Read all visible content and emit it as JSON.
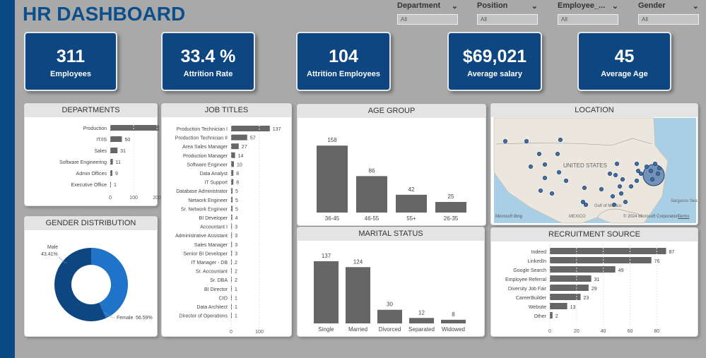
{
  "header": {
    "title": "HR DASHBOARD"
  },
  "filters": [
    {
      "label": "Department",
      "value": "All"
    },
    {
      "label": "Position",
      "value": "All"
    },
    {
      "label": "Employee_...",
      "value": "All"
    },
    {
      "label": "Gender",
      "value": "All"
    }
  ],
  "kpis": [
    {
      "value": "311",
      "label": "Employees"
    },
    {
      "value": "33.4 %",
      "label": "Attrition Rate"
    },
    {
      "value": "104",
      "label": "Attrition Employees"
    },
    {
      "value": "$69,021",
      "label": "Average salary"
    },
    {
      "value": "45",
      "label": "Average Age"
    }
  ],
  "cards": {
    "departments": "DEPARTMENTS",
    "job_titles": "JOB TITLES",
    "age_group": "AGE GROUP",
    "location": "LOCATION",
    "gender": "GENDER DISTRIBUTION",
    "marital": "MARITAL STATUS",
    "recruitment": "RECRUITMENT SOURCE"
  },
  "map": {
    "labels": {
      "us": "UNITED STATES",
      "mexico": "MEXICO",
      "gulf": "Gulf of Mexico",
      "sargasso": "Sargasso Sea"
    },
    "attribution": "© 2024 Microsoft Corporation",
    "terms": "Terms",
    "brand": "Microsoft Bing"
  },
  "colors": {
    "bar": "#666666",
    "kpi": "#0d4680",
    "donut_dark": "#0d4680",
    "donut_light": "#1f73c8"
  },
  "chart_data": [
    {
      "id": "departments",
      "type": "bar",
      "orientation": "horizontal",
      "categories": [
        "Production",
        "IT/IS",
        "Sales",
        "Software Engineering",
        "Admin Offices",
        "Executive Office"
      ],
      "values": [
        209,
        50,
        31,
        11,
        9,
        1
      ],
      "x_ticks": [
        "0",
        "100",
        "200"
      ],
      "xlim": [
        0,
        215
      ]
    },
    {
      "id": "job_titles",
      "type": "bar",
      "orientation": "horizontal",
      "categories": [
        "Production Technician I",
        "Production Technician II",
        "Area Sales Manager",
        "Production Manager",
        "Software Engineer",
        "Data Analyst",
        "IT Support",
        "Database Administrator",
        "Network Engineer",
        "Sr. Network Engineer",
        "BI Developer",
        "Accountant I",
        "Administrative Assistant",
        "Sales Manager",
        "Senior BI Developer",
        "IT Manager - DB",
        "Sr. Accountant",
        "Sr. DBA",
        "BI Director",
        "CIO",
        "Data Architect",
        "Director of Operations"
      ],
      "values": [
        137,
        57,
        27,
        14,
        10,
        8,
        8,
        5,
        5,
        5,
        4,
        3,
        3,
        3,
        3,
        2,
        2,
        2,
        1,
        1,
        1,
        1
      ],
      "x_ticks": [
        "0",
        "100"
      ],
      "xlim": [
        0,
        140
      ]
    },
    {
      "id": "age_group",
      "type": "bar",
      "categories": [
        "36-45",
        "46-55",
        "55+",
        "26-35"
      ],
      "values": [
        158,
        86,
        42,
        25
      ],
      "ylim": [
        0,
        160
      ]
    },
    {
      "id": "gender",
      "type": "pie",
      "donut": true,
      "slices": [
        {
          "label": "Male",
          "value": 43.41,
          "pct_label": "43.41%",
          "color": "#1f73c8"
        },
        {
          "label": "Female",
          "value": 56.59,
          "pct_label": "56.59%",
          "color": "#0d4680"
        }
      ]
    },
    {
      "id": "marital",
      "type": "bar",
      "categories": [
        "Single",
        "Married",
        "Divorced",
        "Separated",
        "Widowed"
      ],
      "values": [
        137,
        124,
        30,
        12,
        8
      ],
      "ylim": [
        0,
        140
      ]
    },
    {
      "id": "recruitment",
      "type": "bar",
      "orientation": "horizontal",
      "categories": [
        "Indeed",
        "LinkedIn",
        "Google Search",
        "Employee Referral",
        "Diversity Job Fair",
        "CareerBuilder",
        "Website",
        "Other"
      ],
      "values": [
        87,
        76,
        49,
        31,
        29,
        23,
        13,
        2
      ],
      "x_ticks": [
        "0",
        "20",
        "40",
        "60",
        "80"
      ],
      "xlim": [
        0,
        92
      ]
    }
  ]
}
